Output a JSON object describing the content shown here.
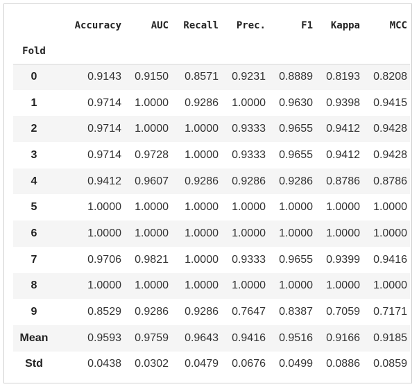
{
  "table": {
    "columns": [
      "Accuracy",
      "AUC",
      "Recall",
      "Prec.",
      "F1",
      "Kappa",
      "MCC"
    ],
    "index_name": "Fold",
    "rows": [
      {
        "label": "0",
        "values": [
          "0.9143",
          "0.9150",
          "0.8571",
          "0.9231",
          "0.8889",
          "0.8193",
          "0.8208"
        ]
      },
      {
        "label": "1",
        "values": [
          "0.9714",
          "1.0000",
          "0.9286",
          "1.0000",
          "0.9630",
          "0.9398",
          "0.9415"
        ]
      },
      {
        "label": "2",
        "values": [
          "0.9714",
          "1.0000",
          "1.0000",
          "0.9333",
          "0.9655",
          "0.9412",
          "0.9428"
        ]
      },
      {
        "label": "3",
        "values": [
          "0.9714",
          "0.9728",
          "1.0000",
          "0.9333",
          "0.9655",
          "0.9412",
          "0.9428"
        ]
      },
      {
        "label": "4",
        "values": [
          "0.9412",
          "0.9607",
          "0.9286",
          "0.9286",
          "0.9286",
          "0.8786",
          "0.8786"
        ]
      },
      {
        "label": "5",
        "values": [
          "1.0000",
          "1.0000",
          "1.0000",
          "1.0000",
          "1.0000",
          "1.0000",
          "1.0000"
        ]
      },
      {
        "label": "6",
        "values": [
          "1.0000",
          "1.0000",
          "1.0000",
          "1.0000",
          "1.0000",
          "1.0000",
          "1.0000"
        ]
      },
      {
        "label": "7",
        "values": [
          "0.9706",
          "0.9821",
          "1.0000",
          "0.9333",
          "0.9655",
          "0.9399",
          "0.9416"
        ]
      },
      {
        "label": "8",
        "values": [
          "1.0000",
          "1.0000",
          "1.0000",
          "1.0000",
          "1.0000",
          "1.0000",
          "1.0000"
        ]
      },
      {
        "label": "9",
        "values": [
          "0.8529",
          "0.9286",
          "0.9286",
          "0.7647",
          "0.8387",
          "0.7059",
          "0.7171"
        ]
      },
      {
        "label": "Mean",
        "values": [
          "0.9593",
          "0.9759",
          "0.9643",
          "0.9416",
          "0.9516",
          "0.9166",
          "0.9185"
        ]
      },
      {
        "label": "Std",
        "values": [
          "0.0438",
          "0.0302",
          "0.0479",
          "0.0676",
          "0.0499",
          "0.0886",
          "0.0859"
        ]
      }
    ]
  }
}
